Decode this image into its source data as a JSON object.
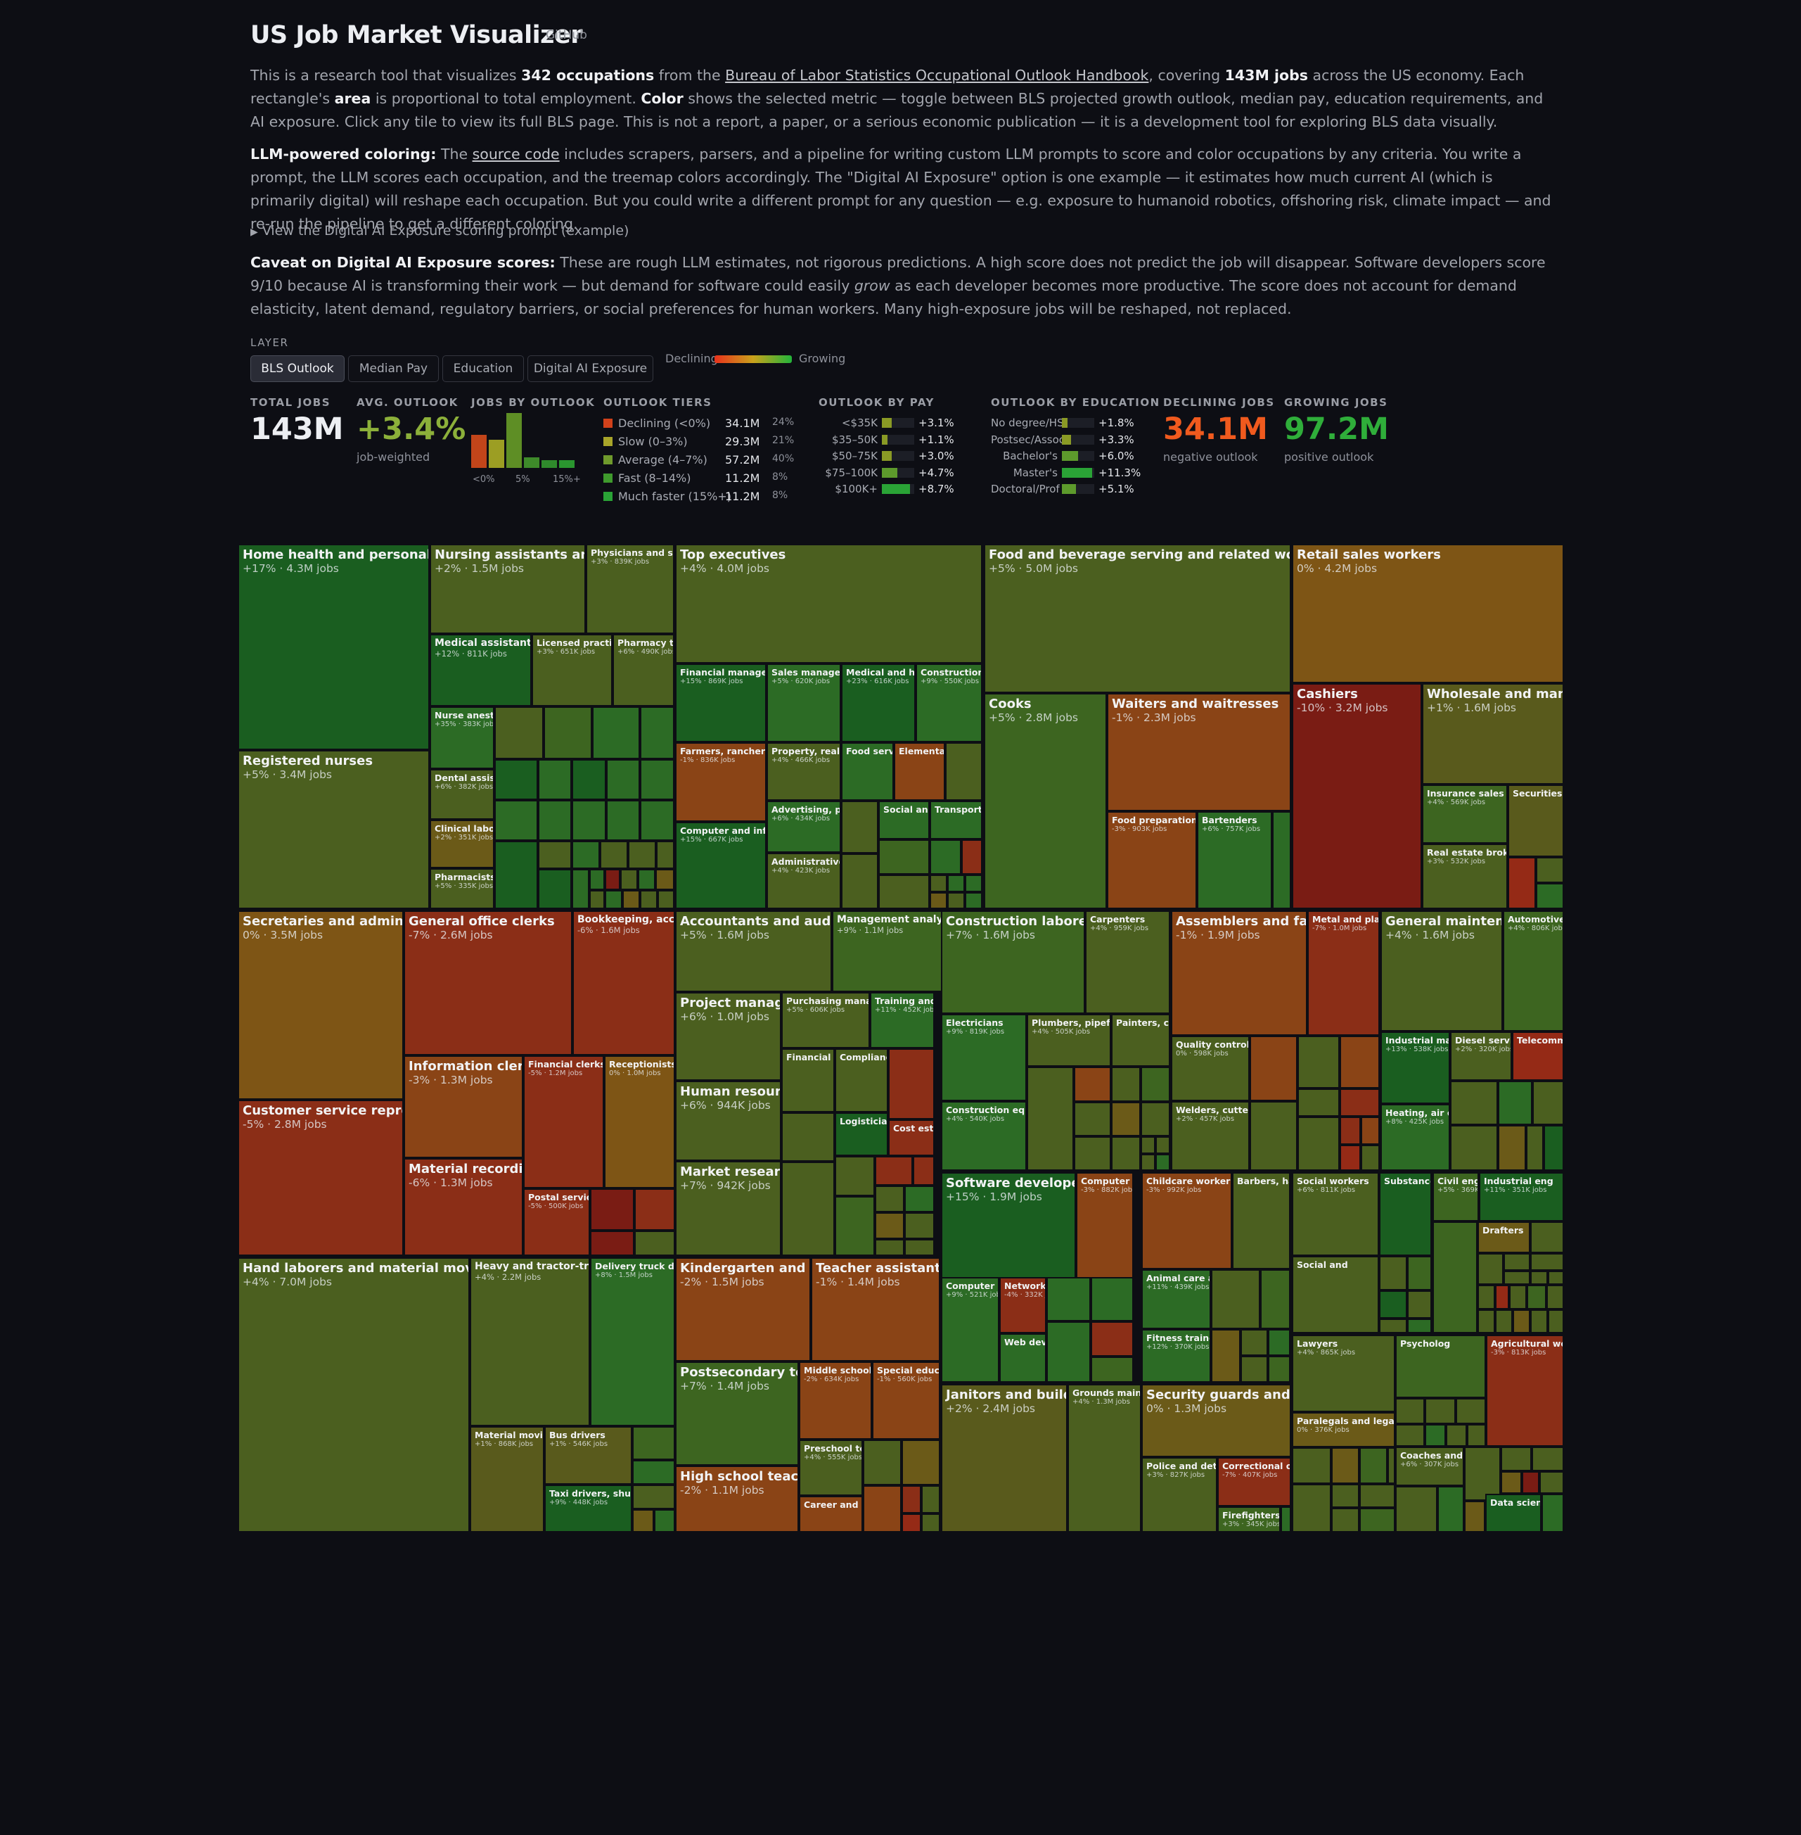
{
  "title": "US Job Market Visualizer",
  "github_label": "GitHub",
  "intro": {
    "p1": [
      "This is a research tool that visualizes ",
      "342 occupations",
      " from the ",
      "Bureau of Labor Statistics Occupational Outlook Handbook",
      ", covering ",
      "143M jobs",
      " across the US economy. Each rectangle's ",
      "area",
      " is proportional to total employment. ",
      "Color",
      " shows the selected metric — toggle between BLS projected growth outlook, median pay, education requirements, and AI exposure. Click any tile to view its full BLS page. This is not a report, a paper, or a serious economic publication — it is a development tool for exploring BLS data visually."
    ],
    "p2": [
      "LLM-powered coloring:",
      " The ",
      "source code",
      " includes scrapers, parsers, and a pipeline for writing custom LLM prompts to score and color occupations by any criteria. You write a prompt, the LLM scores each occupation, and the treemap colors accordingly. The \"Digital AI Exposure\" option is one example — it estimates how much current AI (which is primarily digital) will reshape each occupation. But you could write a different prompt for any question — e.g. exposure to humanoid robotics, offshoring risk, climate impact — and re-run the pipeline to get a different coloring."
    ],
    "details": "View the Digital AI Exposure scoring prompt (example)",
    "p3": [
      "Caveat on Digital AI Exposure scores:",
      " These are rough LLM estimates, not rigorous predictions. A high score does not predict the job will disappear. Software developers score 9/10 because AI is transforming their work — but demand for software could easily ",
      "grow",
      " as each developer becomes more productive. The score does not account for demand elasticity, latent demand, regulatory barriers, or social preferences for human workers. Many high-exposure jobs will be reshaped, not replaced."
    ]
  },
  "layer": {
    "label": "LAYER",
    "buttons": [
      "BLS Outlook",
      "Median Pay",
      "Education",
      "Digital AI Exposure"
    ],
    "active": "BLS Outlook",
    "legend_low": "Declining",
    "legend_high": "Growing"
  },
  "stats": {
    "total_label": "TOTAL JOBS",
    "total_value": "143M",
    "avg_label": "AVG. OUTLOOK",
    "avg_value": "+3.4%",
    "avg_sub": "job-weighted",
    "hist_label": "JOBS BY OUTLOOK",
    "hist_values": [
      34.1,
      29.3,
      57.2,
      11.2,
      8.0,
      8.0
    ],
    "hist_colors": [
      "#c2451a",
      "#9c9e23",
      "#5e8e25",
      "#3e8a2a",
      "#2f8a2c",
      "#2a962f"
    ],
    "hist_ticks": [
      "<0%",
      "5%",
      "15%+"
    ],
    "tiers_label": "OUTLOOK TIERS",
    "tiers": [
      {
        "name": "Declining (<0%)",
        "jobs": "34.1M",
        "pct": "24%",
        "color": "#d1411b"
      },
      {
        "name": "Slow (0–3%)",
        "jobs": "29.3M",
        "pct": "21%",
        "color": "#a8a52a"
      },
      {
        "name": "Average (4–7%)",
        "jobs": "57.2M",
        "pct": "40%",
        "color": "#6f9a2c"
      },
      {
        "name": "Fast (8–14%)",
        "jobs": "11.2M",
        "pct": "8%",
        "color": "#3f9a2d"
      },
      {
        "name": "Much faster (15%+)",
        "jobs": "11.2M",
        "pct": "8%",
        "color": "#2aa336"
      }
    ],
    "pay_label": "OUTLOOK BY PAY",
    "pay": [
      {
        "name": "<$35K",
        "value": "+3.1%",
        "num": 3.1
      },
      {
        "name": "$35–50K",
        "value": "+1.1%",
        "num": 1.1
      },
      {
        "name": "$50–75K",
        "value": "+3.0%",
        "num": 3.0
      },
      {
        "name": "$75–100K",
        "value": "+4.7%",
        "num": 4.7
      },
      {
        "name": "$100K+",
        "value": "+8.7%",
        "num": 8.7
      }
    ],
    "edu_label": "OUTLOOK BY EDUCATION",
    "edu": [
      {
        "name": "No degree/HS",
        "value": "+1.8%",
        "num": 1.8
      },
      {
        "name": "Postsec/Assoc",
        "value": "+3.3%",
        "num": 3.3
      },
      {
        "name": "Bachelor's",
        "value": "+6.0%",
        "num": 6.0
      },
      {
        "name": "Master's",
        "value": "+11.3%",
        "num": 11.3
      },
      {
        "name": "Doctoral/Prof",
        "value": "+5.1%",
        "num": 5.1
      }
    ],
    "declining_label": "DECLINING JOBS",
    "declining_value": "34.1M",
    "declining_sub": "negative outlook",
    "growing_label": "GROWING JOBS",
    "growing_value": "97.2M",
    "growing_sub": "positive outlook"
  },
  "treemap_tiles": [
    {
      "name": "Home health and personal care",
      "value": "+17% · 4.3M jobs"
    },
    {
      "name": "Registered nurses",
      "value": "+5% · 3.4M jobs"
    },
    {
      "name": "Nursing assistants and or",
      "value": "+2% · 1.5M jobs"
    },
    {
      "name": "Physicians and surg",
      "value": "+3% · 839K jobs"
    },
    {
      "name": "Medical assistants",
      "value": "+12% · 811K jobs"
    },
    {
      "name": "Licensed practical",
      "value": "+3% · 651K jobs"
    },
    {
      "name": "Pharmacy tec",
      "value": "+6% · 490K jobs"
    },
    {
      "name": "Nurse anesth",
      "value": "+35% · 383K jobs"
    },
    {
      "name": "Dental assista",
      "value": "+6% · 382K jobs"
    },
    {
      "name": "Clinical labora",
      "value": "+2% · 351K jobs"
    },
    {
      "name": "Pharmacists",
      "value": "+5% · 335K jobs"
    },
    {
      "name": "Top executives",
      "value": "+4% · 4.0M jobs"
    },
    {
      "name": "Financial managers",
      "value": "+15% · 869K jobs"
    },
    {
      "name": "Sales managers",
      "value": "+5% · 620K jobs"
    },
    {
      "name": "Medical and hea",
      "value": "+23% · 616K jobs"
    },
    {
      "name": "Construction m",
      "value": "+9% · 550K jobs"
    },
    {
      "name": "Farmers, ranchers, a",
      "value": "-1% · 836K jobs"
    },
    {
      "name": "Property, real es",
      "value": "+4% · 466K jobs"
    },
    {
      "name": "Food servic",
      "value": ""
    },
    {
      "name": "Elementar",
      "value": ""
    },
    {
      "name": "Advertising, pro",
      "value": "+6% · 434K jobs"
    },
    {
      "name": "Social and",
      "value": ""
    },
    {
      "name": "Transporta",
      "value": ""
    },
    {
      "name": "Computer and infor",
      "value": "+15% · 667K jobs"
    },
    {
      "name": "Administrative s",
      "value": "+4% · 423K jobs"
    },
    {
      "name": "Food and beverage serving and related workers",
      "value": "+5% · 5.0M jobs"
    },
    {
      "name": "Cooks",
      "value": "+5% · 2.8M jobs"
    },
    {
      "name": "Waiters and waitresses",
      "value": "-1% · 2.3M jobs"
    },
    {
      "name": "Food preparation w",
      "value": "-3% · 903K jobs"
    },
    {
      "name": "Bartenders",
      "value": "+6% · 757K jobs"
    },
    {
      "name": "Retail sales workers",
      "value": "0% · 4.2M jobs"
    },
    {
      "name": "Cashiers",
      "value": "-10% · 3.2M jobs"
    },
    {
      "name": "Wholesale and manufac",
      "value": "+1% · 1.6M jobs"
    },
    {
      "name": "Insurance sales age",
      "value": "+4% · 569K jobs"
    },
    {
      "name": "Securities, c",
      "value": ""
    },
    {
      "name": "Real estate brokers",
      "value": "+3% · 532K jobs"
    },
    {
      "name": "Secretaries and administrat",
      "value": "0% · 3.5M jobs"
    },
    {
      "name": "General office clerks",
      "value": "-7% · 2.6M jobs"
    },
    {
      "name": "Bookkeeping, accou",
      "value": "-6% · 1.6M jobs"
    },
    {
      "name": "Information clerks",
      "value": "-3% · 1.3M jobs"
    },
    {
      "name": "Financial clerks",
      "value": "-5% · 1.2M jobs"
    },
    {
      "name": "Receptionists",
      "value": "0% · 1.0M jobs"
    },
    {
      "name": "Customer service represent",
      "value": "-5% · 2.8M jobs"
    },
    {
      "name": "Material recording cl",
      "value": "-6% · 1.3M jobs"
    },
    {
      "name": "Postal service",
      "value": "-5% · 500K jobs"
    },
    {
      "name": "Accountants and auditors",
      "value": "+5% · 1.6M jobs"
    },
    {
      "name": "Management analys",
      "value": "+9% · 1.1M jobs"
    },
    {
      "name": "Project managemen",
      "value": "+6% · 1.0M jobs"
    },
    {
      "name": "Purchasing manage",
      "value": "+5% · 606K jobs"
    },
    {
      "name": "Training and d",
      "value": "+11% · 452K jobs"
    },
    {
      "name": "Financial an",
      "value": ""
    },
    {
      "name": "Complianc",
      "value": ""
    },
    {
      "name": "Human resources sp",
      "value": "+6% · 944K jobs"
    },
    {
      "name": "Logisticians",
      "value": ""
    },
    {
      "name": "Cost estim",
      "value": ""
    },
    {
      "name": "Market research ana",
      "value": "+7% · 942K jobs"
    },
    {
      "name": "Construction laborers a",
      "value": "+7% · 1.6M jobs"
    },
    {
      "name": "Carpenters",
      "value": "+4% · 959K jobs"
    },
    {
      "name": "Electricians",
      "value": "+9% · 819K jobs"
    },
    {
      "name": "Plumbers, pipefitte",
      "value": "+4% · 505K jobs"
    },
    {
      "name": "Painters, con",
      "value": ""
    },
    {
      "name": "Construction equip",
      "value": "+4% · 540K jobs"
    },
    {
      "name": "Assemblers and fabric",
      "value": "-1% · 1.9M jobs"
    },
    {
      "name": "Metal and plasti",
      "value": "-7% · 1.0M jobs"
    },
    {
      "name": "Quality control in",
      "value": "0% · 598K jobs"
    },
    {
      "name": "Welders, cutters,",
      "value": "+2% · 457K jobs"
    },
    {
      "name": "General maintenanc",
      "value": "+4% · 1.6M jobs"
    },
    {
      "name": "Automotive s",
      "value": "+4% · 806K jobs"
    },
    {
      "name": "Industrial mach",
      "value": "+13% · 538K jobs"
    },
    {
      "name": "Diesel service",
      "value": "+2% · 320K jobs"
    },
    {
      "name": "Telecomm",
      "value": ""
    },
    {
      "name": "Heating, air co",
      "value": "+8% · 425K jobs"
    },
    {
      "name": "Software developers, q",
      "value": "+15% · 1.9M jobs"
    },
    {
      "name": "Computer sup",
      "value": "-3% · 882K jobs"
    },
    {
      "name": "Computer sy",
      "value": "+9% · 521K jobs"
    },
    {
      "name": "Network and",
      "value": "-4% · 332K jobs"
    },
    {
      "name": "Web develop",
      "value": ""
    },
    {
      "name": "Childcare workers",
      "value": "-3% · 992K jobs"
    },
    {
      "name": "Barbers, hair",
      "value": ""
    },
    {
      "name": "Animal care an",
      "value": "+11% · 439K jobs"
    },
    {
      "name": "Fitness trainers",
      "value": "+12% · 370K jobs"
    },
    {
      "name": "Social workers",
      "value": "+6% · 811K jobs"
    },
    {
      "name": "Substance",
      "value": ""
    },
    {
      "name": "Social and",
      "value": ""
    },
    {
      "name": "Civil engineers",
      "value": "+5% · 369K jobs"
    },
    {
      "name": "Industrial eng",
      "value": "+11% · 351K jobs"
    },
    {
      "name": "Drafters",
      "value": ""
    },
    {
      "name": "Hand laborers and material movers",
      "value": "+4% · 7.0M jobs"
    },
    {
      "name": "Heavy and tractor-tr",
      "value": "+4% · 2.2M jobs"
    },
    {
      "name": "Delivery truck driv",
      "value": "+8% · 1.5M jobs"
    },
    {
      "name": "Material moving",
      "value": "+1% · 868K jobs"
    },
    {
      "name": "Bus drivers",
      "value": "+1% · 546K jobs"
    },
    {
      "name": "Taxi drivers, shuttle",
      "value": "+9% · 448K jobs"
    },
    {
      "name": "Kindergarten and elen",
      "value": "-2% · 1.5M jobs"
    },
    {
      "name": "Teacher assistants",
      "value": "-1% · 1.4M jobs"
    },
    {
      "name": "Postsecondary teach",
      "value": "+7% · 1.4M jobs"
    },
    {
      "name": "Middle school te",
      "value": "-2% · 634K jobs"
    },
    {
      "name": "Special educat",
      "value": "-1% · 560K jobs"
    },
    {
      "name": "Preschool teac",
      "value": "+4% · 555K jobs"
    },
    {
      "name": "High school teachers",
      "value": "-2% · 1.1M jobs"
    },
    {
      "name": "Career and tec",
      "value": ""
    },
    {
      "name": "Janitors and building",
      "value": "+2% · 2.4M jobs"
    },
    {
      "name": "Grounds mainte",
      "value": "+4% · 1.3M jobs"
    },
    {
      "name": "Security guards and garr",
      "value": "0% · 1.3M jobs"
    },
    {
      "name": "Police and detec",
      "value": "+3% · 827K jobs"
    },
    {
      "name": "Correctional offi",
      "value": "-7% · 407K jobs"
    },
    {
      "name": "Firefighters",
      "value": "+3% · 345K jobs"
    },
    {
      "name": "Lawyers",
      "value": "+4% · 865K jobs"
    },
    {
      "name": "Psycholog",
      "value": ""
    },
    {
      "name": "Agricultural wo",
      "value": "-3% · 813K jobs"
    },
    {
      "name": "Paralegals and lega",
      "value": "0% · 376K jobs"
    },
    {
      "name": "Coaches and s",
      "value": "+6% · 307K jobs"
    },
    {
      "name": "Data scienti",
      "value": ""
    }
  ],
  "colors": {
    "bg": "#0d0e14",
    "declining": "#f05a1e",
    "avg": "#8cb03a",
    "growing": "#2fae3a"
  }
}
